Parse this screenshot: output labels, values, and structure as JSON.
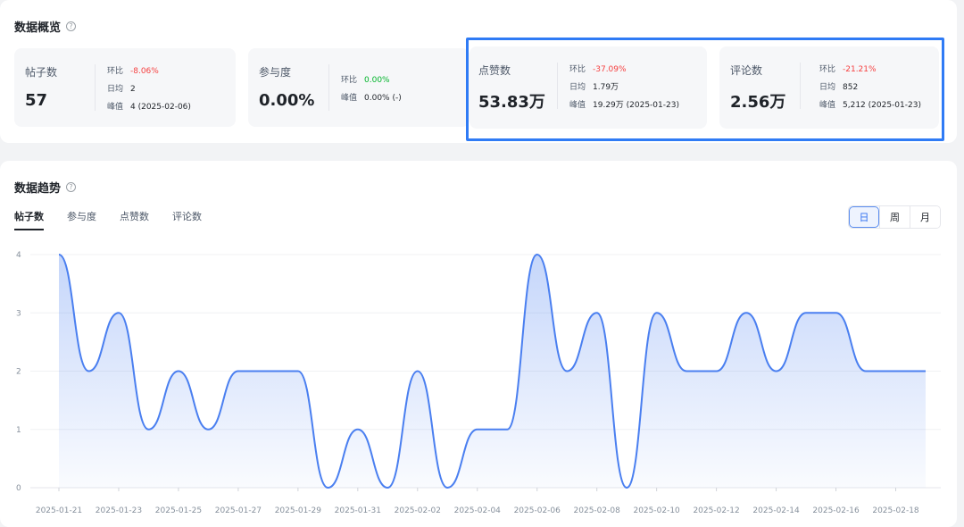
{
  "overview": {
    "title": "数据概览",
    "help_icon": "?",
    "cards": [
      {
        "label": "帖子数",
        "value": "57",
        "change_label": "环比",
        "change": "-8.06%",
        "avg_label": "日均",
        "avg": "2",
        "peak_label": "峰值",
        "peak": "4 (2025-02-06)"
      },
      {
        "label": "参与度",
        "value": "0.00%",
        "change_label": "环比",
        "change": "0.00%",
        "avg_label": "峰值",
        "avg": "0.00% (-)"
      },
      {
        "label": "点赞数",
        "value": "53.83万",
        "change_label": "环比",
        "change": "-37.09%",
        "avg_label": "日均",
        "avg": "1.79万",
        "peak_label": "峰值",
        "peak": "19.29万 (2025-01-23)"
      },
      {
        "label": "评论数",
        "value": "2.56万",
        "change_label": "环比",
        "change": "-21.21%",
        "avg_label": "日均",
        "avg": "852",
        "peak_label": "峰值",
        "peak": "5,212 (2025-01-23)"
      }
    ]
  },
  "trend": {
    "title": "数据趋势",
    "help_icon": "?",
    "tabs": [
      "帖子数",
      "参与度",
      "点赞数",
      "评论数"
    ],
    "active_tab": "帖子数",
    "period_options": [
      "日",
      "周",
      "月"
    ],
    "active_period": "日"
  },
  "colors": {
    "accent": "#4a7ff0",
    "negative": "#f53f3f",
    "positive": "#00b42a",
    "highlight_border": "#2f7bf5"
  },
  "chart_data": {
    "type": "area",
    "x": [
      "2025-01-21",
      "2025-01-22",
      "2025-01-23",
      "2025-01-24",
      "2025-01-25",
      "2025-01-26",
      "2025-01-27",
      "2025-01-28",
      "2025-01-29",
      "2025-01-30",
      "2025-01-31",
      "2025-02-01",
      "2025-02-02",
      "2025-02-03",
      "2025-02-04",
      "2025-02-05",
      "2025-02-06",
      "2025-02-07",
      "2025-02-08",
      "2025-02-09",
      "2025-02-10",
      "2025-02-11",
      "2025-02-12",
      "2025-02-13",
      "2025-02-14",
      "2025-02-15",
      "2025-02-16",
      "2025-02-17",
      "2025-02-18",
      "2025-02-19"
    ],
    "x_tick_labels": [
      "2025-01-21",
      "2025-01-23",
      "2025-01-25",
      "2025-01-27",
      "2025-01-29",
      "2025-01-31",
      "2025-02-02",
      "2025-02-04",
      "2025-02-06",
      "2025-02-08",
      "2025-02-10",
      "2025-02-12",
      "2025-02-14",
      "2025-02-16",
      "2025-02-18"
    ],
    "series": [
      {
        "values": [
          4,
          2,
          3,
          1,
          2,
          1,
          2,
          2,
          2,
          0,
          1,
          0,
          2,
          0,
          1,
          1,
          4,
          2,
          3,
          0,
          3,
          2,
          2,
          3,
          2,
          3,
          3,
          2,
          2,
          2
        ]
      }
    ],
    "ylim": [
      0,
      4
    ],
    "y_ticks": [
      0,
      1,
      2,
      3,
      4
    ],
    "grid": true
  }
}
